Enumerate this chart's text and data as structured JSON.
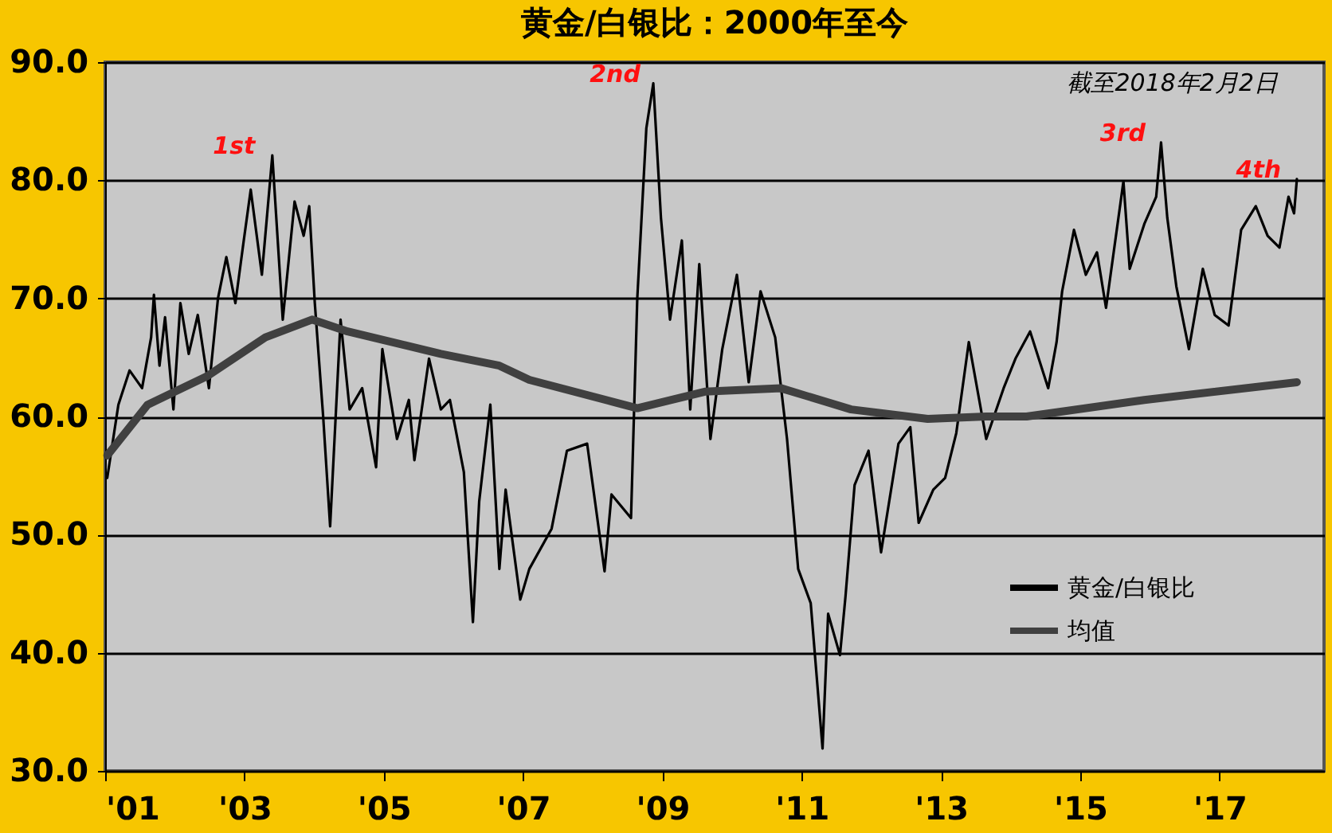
{
  "chart_data": {
    "type": "line",
    "title": "黄金/白银比：2000年至今",
    "xlim": [
      2001,
      2018.5
    ],
    "xticks": [
      {
        "value": 2001,
        "label": "'01"
      },
      {
        "value": 2003,
        "label": "'03"
      },
      {
        "value": 2005,
        "label": "'05"
      },
      {
        "value": 2007,
        "label": "'07"
      },
      {
        "value": 2009,
        "label": "'09"
      },
      {
        "value": 2011,
        "label": "'11"
      },
      {
        "value": 2013,
        "label": "'13"
      },
      {
        "value": 2015,
        "label": "'15"
      },
      {
        "value": 2017,
        "label": "'17"
      }
    ],
    "ylim": [
      30,
      90
    ],
    "yticks": [
      {
        "value": 30,
        "label": "30.0"
      },
      {
        "value": 40,
        "label": "40.0"
      },
      {
        "value": 50,
        "label": "50.0"
      },
      {
        "value": 60,
        "label": "60.0"
      },
      {
        "value": 70,
        "label": "70.0"
      },
      {
        "value": 80,
        "label": "80.0"
      },
      {
        "value": 90,
        "label": "90.0"
      }
    ],
    "grid": "y",
    "legend": "bottom right",
    "series": [
      {
        "name": "黄金/白银比",
        "color": "#000000",
        "x": [
          2001.03,
          2001.19,
          2001.35,
          2001.53,
          2001.66,
          2001.7,
          2001.78,
          2001.86,
          2001.98,
          2002.08,
          2002.2,
          2002.33,
          2002.49,
          2002.62,
          2002.74,
          2002.87,
          2002.99,
          2003.09,
          2003.25,
          2003.4,
          2003.55,
          2003.72,
          2003.85,
          2003.93,
          2004.01,
          2004.13,
          2004.23,
          2004.38,
          2004.51,
          2004.69,
          2004.89,
          2004.98,
          2005.19,
          2005.36,
          2005.44,
          2005.65,
          2005.82,
          2005.95,
          2006.15,
          2006.28,
          2006.37,
          2006.53,
          2006.66,
          2006.75,
          2006.96,
          2007.09,
          2007.41,
          2007.63,
          2007.92,
          2008.17,
          2008.27,
          2008.55,
          2008.64,
          2008.77,
          2008.87,
          2008.98,
          2009.11,
          2009.28,
          2009.4,
          2009.53,
          2009.69,
          2009.86,
          2010.07,
          2010.24,
          2010.41,
          2010.62,
          2010.79,
          2010.95,
          2011.13,
          2011.3,
          2011.38,
          2011.55,
          2011.63,
          2011.76,
          2011.96,
          2012.14,
          2012.39,
          2012.56,
          2012.68,
          2012.89,
          2013.06,
          2013.22,
          2013.4,
          2013.65,
          2013.9,
          2014.07,
          2014.28,
          2014.54,
          2014.66,
          2014.74,
          2014.91,
          2015.08,
          2015.24,
          2015.37,
          2015.62,
          2015.71,
          2015.92,
          2016.09,
          2016.16,
          2016.25,
          2016.38,
          2016.56,
          2016.76,
          2016.93,
          2017.13,
          2017.31,
          2017.52,
          2017.69,
          2017.86,
          2017.99,
          2018.07,
          2018.11
        ],
        "values": [
          54.8,
          61,
          63.9,
          62.4,
          66.7,
          70.3,
          64.3,
          68.4,
          60.6,
          69.6,
          65.3,
          68.6,
          62.4,
          70,
          73.5,
          69.6,
          74.9,
          79.2,
          72,
          82.1,
          68.2,
          78.2,
          75.3,
          77.8,
          69.6,
          60,
          50.7,
          68.2,
          60.6,
          62.4,
          55.7,
          65.7,
          58.1,
          61.4,
          56.3,
          64.9,
          60.6,
          61.4,
          55.3,
          42.6,
          52.8,
          61,
          47.1,
          53.8,
          44.5,
          47.1,
          50.5,
          57.1,
          57.7,
          46.9,
          53.4,
          51.4,
          70,
          84.4,
          88.2,
          76.8,
          68.2,
          74.9,
          60.6,
          72.9,
          58.1,
          65.7,
          72,
          62.9,
          70.6,
          66.7,
          58.1,
          47.1,
          44.2,
          31.9,
          43.3,
          39.8,
          44.8,
          54.2,
          57.1,
          48.5,
          57.7,
          59.1,
          51,
          53.8,
          54.8,
          58.6,
          66.3,
          58.1,
          62.4,
          64.9,
          67.2,
          62.4,
          66.3,
          70.6,
          75.8,
          72,
          73.9,
          69.2,
          79.9,
          72.5,
          76.3,
          78.6,
          83.2,
          76.8,
          71,
          65.7,
          72.5,
          68.6,
          67.7,
          75.8,
          77.8,
          75.3,
          74.3,
          78.6,
          77.2,
          80.1
        ]
      },
      {
        "name": "均值",
        "color": "#404040",
        "x": [
          2001.03,
          2001.61,
          2002.46,
          2003.3,
          2003.97,
          2004.48,
          2005.82,
          2006.66,
          2007.09,
          2008.64,
          2009.61,
          2010.7,
          2011.71,
          2012.81,
          2013.65,
          2014.23,
          2015.92,
          2018.11
        ],
        "values": [
          56.7,
          61,
          63.4,
          66.7,
          68.2,
          67.2,
          65.3,
          64.3,
          63.1,
          60.7,
          62.1,
          62.4,
          60.6,
          59.8,
          60,
          60,
          61.4,
          62.9
        ]
      }
    ],
    "annotations": [
      "截至2018年2月2日",
      {
        "text": "1st",
        "x": 2003.4,
        "y": 82.1
      },
      {
        "text": "2nd",
        "x": 2008.87,
        "y": 88.2
      },
      {
        "text": "3rd",
        "x": 2016.16,
        "y": 83.2
      },
      {
        "text": "4th",
        "x": 2018.11,
        "y": 80.1
      }
    ]
  }
}
